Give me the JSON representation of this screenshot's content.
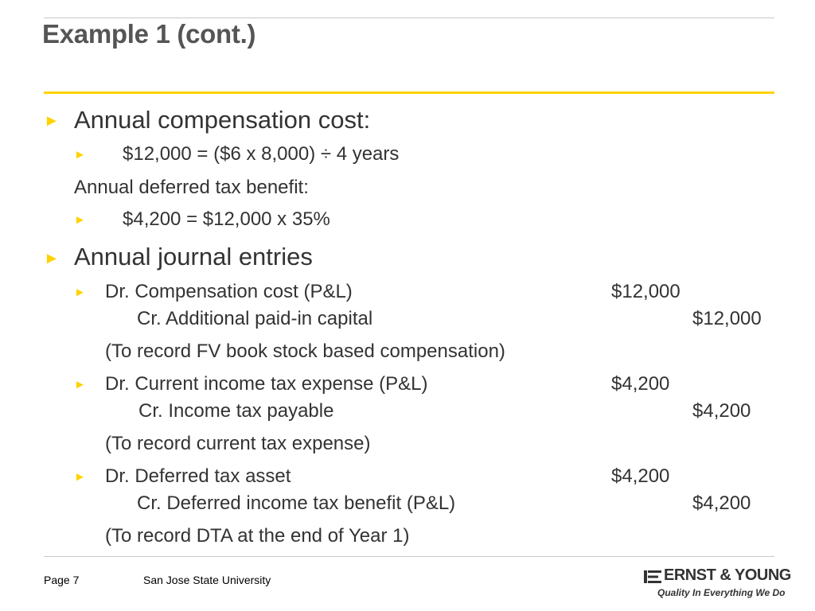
{
  "slide": {
    "title": "Example 1 (cont.)"
  },
  "content": {
    "comp_heading": "Annual compensation cost:",
    "comp_calc": "$12,000 = ($6 x 8,000) ÷ 4 years",
    "dtb_heading": "Annual deferred tax benefit:",
    "dtb_calc": "$4,200 = $12,000 x 35%",
    "je_heading": "Annual journal entries",
    "entries": [
      {
        "dr_account": "Dr.  Compensation cost (P&L)",
        "dr_amount": "$12,000",
        "cr_account": "Cr. Additional paid-in capital",
        "cr_amount": "$12,000",
        "note": "(To record FV book stock based compensation)"
      },
      {
        "dr_account": "Dr. Current income tax expense (P&L)",
        "dr_amount": "$4,200",
        "cr_account": "Cr. Income tax payable",
        "cr_amount": "$4,200",
        "note": "(To record current tax expense)"
      },
      {
        "dr_account": "Dr.  Deferred tax asset",
        "dr_amount": "$4,200",
        "cr_account": "Cr. Deferred income tax benefit (P&L)",
        "cr_amount": "$4,200",
        "note": "(To record DTA at the end of Year 1)"
      }
    ]
  },
  "footer": {
    "page": "Page 7",
    "org": "San Jose State University",
    "logo_name": "ERNST & YOUNG",
    "logo_tagline": "Quality In Everything We Do"
  },
  "colors": {
    "accent": "#ffd200",
    "text": "#333333",
    "title": "#555555",
    "rule": "#c8c8c8"
  },
  "icons": {
    "bullet": "triangle-right-bullet-icon"
  }
}
